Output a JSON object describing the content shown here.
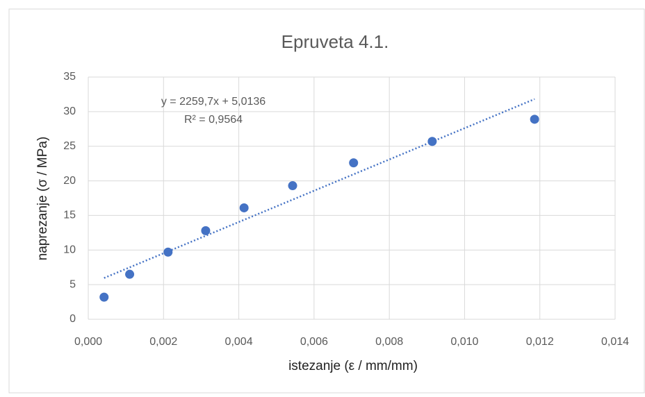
{
  "chart_data": {
    "type": "scatter",
    "title": "Epruveta 4.1.",
    "x_label": "istezanje (ε / mm/mm)",
    "y_label": "naprezanje (σ / MPa)",
    "x": [
      0.00042,
      0.0011,
      0.00212,
      0.00312,
      0.00414,
      0.00543,
      0.00705,
      0.00914,
      0.01186
    ],
    "values": [
      3.2,
      6.5,
      9.7,
      12.8,
      16.1,
      19.3,
      22.6,
      25.7,
      28.9
    ],
    "color": "#4472c4",
    "xlim": [
      0,
      0.014
    ],
    "xticks": [
      {
        "value": 0,
        "label": "0,000"
      },
      {
        "value": 0.002,
        "label": "0,002"
      },
      {
        "value": 0.004,
        "label": "0,004"
      },
      {
        "value": 0.006,
        "label": "0,006"
      },
      {
        "value": 0.008,
        "label": "0,008"
      },
      {
        "value": 0.01,
        "label": "0,010"
      },
      {
        "value": 0.012,
        "label": "0,012"
      },
      {
        "value": 0.014,
        "label": "0,014"
      }
    ],
    "ylim": [
      0,
      35
    ],
    "yticks": [
      0,
      5,
      10,
      15,
      20,
      25,
      30,
      35
    ],
    "grid": true,
    "trendline": {
      "slope": 2259.7,
      "intercept": 5.0136,
      "equation": "y = 2259,7x + 5,0136",
      "r_squared": "R² = 0,9564"
    }
  }
}
